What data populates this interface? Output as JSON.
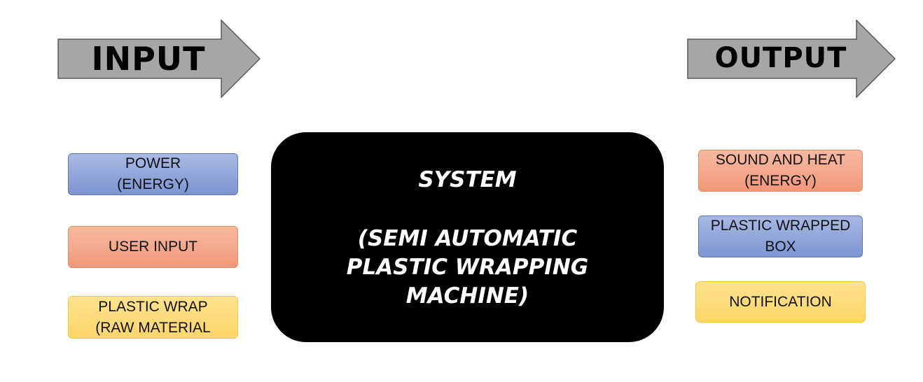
{
  "arrows": {
    "input_label": "INPUT",
    "output_label": "OUTPUT",
    "fill_color": "#a6a6a6",
    "stroke_color": "#595959"
  },
  "inputs": [
    {
      "label": "POWER\n(ENERGY)",
      "color": "blue"
    },
    {
      "label": "USER INPUT",
      "color": "orange"
    },
    {
      "label": "PLASTIC WRAP\n(RAW MATERIAL",
      "color": "yellow"
    }
  ],
  "system": {
    "title": "SYSTEM",
    "description": "(SEMI AUTOMATIC\nPLASTIC WRAPPING\nMACHINE)"
  },
  "outputs": [
    {
      "label": "SOUND AND HEAT\n(ENERGY)",
      "color": "orange"
    },
    {
      "label": "PLASTIC WRAPPED\nBOX",
      "color": "blue"
    },
    {
      "label": "NOTIFICATION",
      "color": "yellow"
    }
  ]
}
